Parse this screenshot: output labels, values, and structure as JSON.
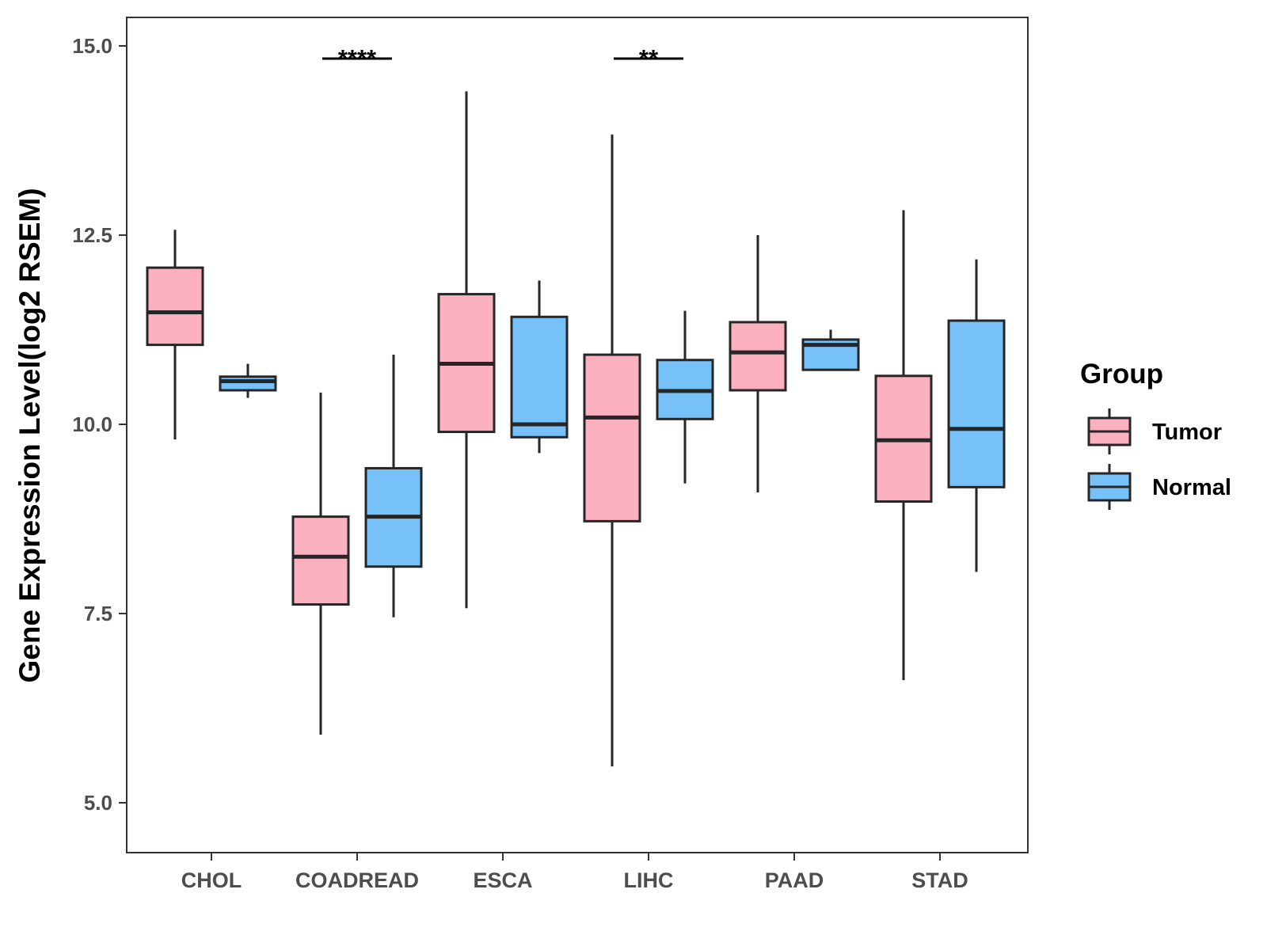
{
  "chart_data": {
    "type": "boxplot",
    "title": "",
    "xlabel": "",
    "ylabel": "Gene Expression Level(log2 RSEM)",
    "ylim": [
      4.4,
      15.4
    ],
    "yticks": [
      "5.0",
      "7.5",
      "10.0",
      "12.5",
      "15.0"
    ],
    "ytick_values": [
      5.0,
      7.5,
      10.0,
      12.5,
      15.0
    ],
    "categories": [
      "CHOL",
      "COADREAD",
      "ESCA",
      "LIHC",
      "PAAD",
      "STAD"
    ],
    "legend": {
      "title": "Group",
      "position": "right",
      "items": [
        {
          "label": "Tumor",
          "color": "#fbb0c0"
        },
        {
          "label": "Normal",
          "color": "#77c1f9"
        }
      ]
    },
    "series": [
      {
        "name": "Tumor",
        "color": "#fbb0c0",
        "boxes": [
          {
            "category": "CHOL",
            "min": 9.8,
            "q1": 11.05,
            "median": 11.48,
            "q3": 12.07,
            "max": 12.57
          },
          {
            "category": "COADREAD",
            "min": 5.9,
            "q1": 7.62,
            "median": 8.25,
            "q3": 8.78,
            "max": 10.42
          },
          {
            "category": "ESCA",
            "min": 7.57,
            "q1": 9.9,
            "median": 10.8,
            "q3": 11.72,
            "max": 14.4
          },
          {
            "category": "LIHC",
            "min": 5.48,
            "q1": 8.72,
            "median": 10.09,
            "q3": 10.92,
            "max": 13.83
          },
          {
            "category": "PAAD",
            "min": 9.1,
            "q1": 10.45,
            "median": 10.95,
            "q3": 11.35,
            "max": 12.5
          },
          {
            "category": "STAD",
            "min": 6.62,
            "q1": 8.98,
            "median": 9.79,
            "q3": 10.64,
            "max": 12.83
          }
        ]
      },
      {
        "name": "Normal",
        "color": "#77c1f9",
        "boxes": [
          {
            "category": "CHOL",
            "min": 10.35,
            "q1": 10.45,
            "median": 10.57,
            "q3": 10.63,
            "max": 10.8
          },
          {
            "category": "COADREAD",
            "min": 7.45,
            "q1": 8.12,
            "median": 8.78,
            "q3": 9.42,
            "max": 10.92
          },
          {
            "category": "ESCA",
            "min": 9.62,
            "q1": 9.83,
            "median": 10.0,
            "q3": 11.42,
            "max": 11.9
          },
          {
            "category": "LIHC",
            "min": 9.22,
            "q1": 10.07,
            "median": 10.44,
            "q3": 10.85,
            "max": 11.5
          },
          {
            "category": "PAAD",
            "min": 10.72,
            "q1": 10.72,
            "median": 11.05,
            "q3": 11.12,
            "max": 11.25
          },
          {
            "category": "STAD",
            "min": 8.05,
            "q1": 9.17,
            "median": 9.94,
            "q3": 11.37,
            "max": 12.18
          }
        ]
      }
    ],
    "annotations": [
      {
        "category": "COADREAD",
        "label": "****"
      },
      {
        "category": "LIHC",
        "label": "**"
      }
    ]
  }
}
